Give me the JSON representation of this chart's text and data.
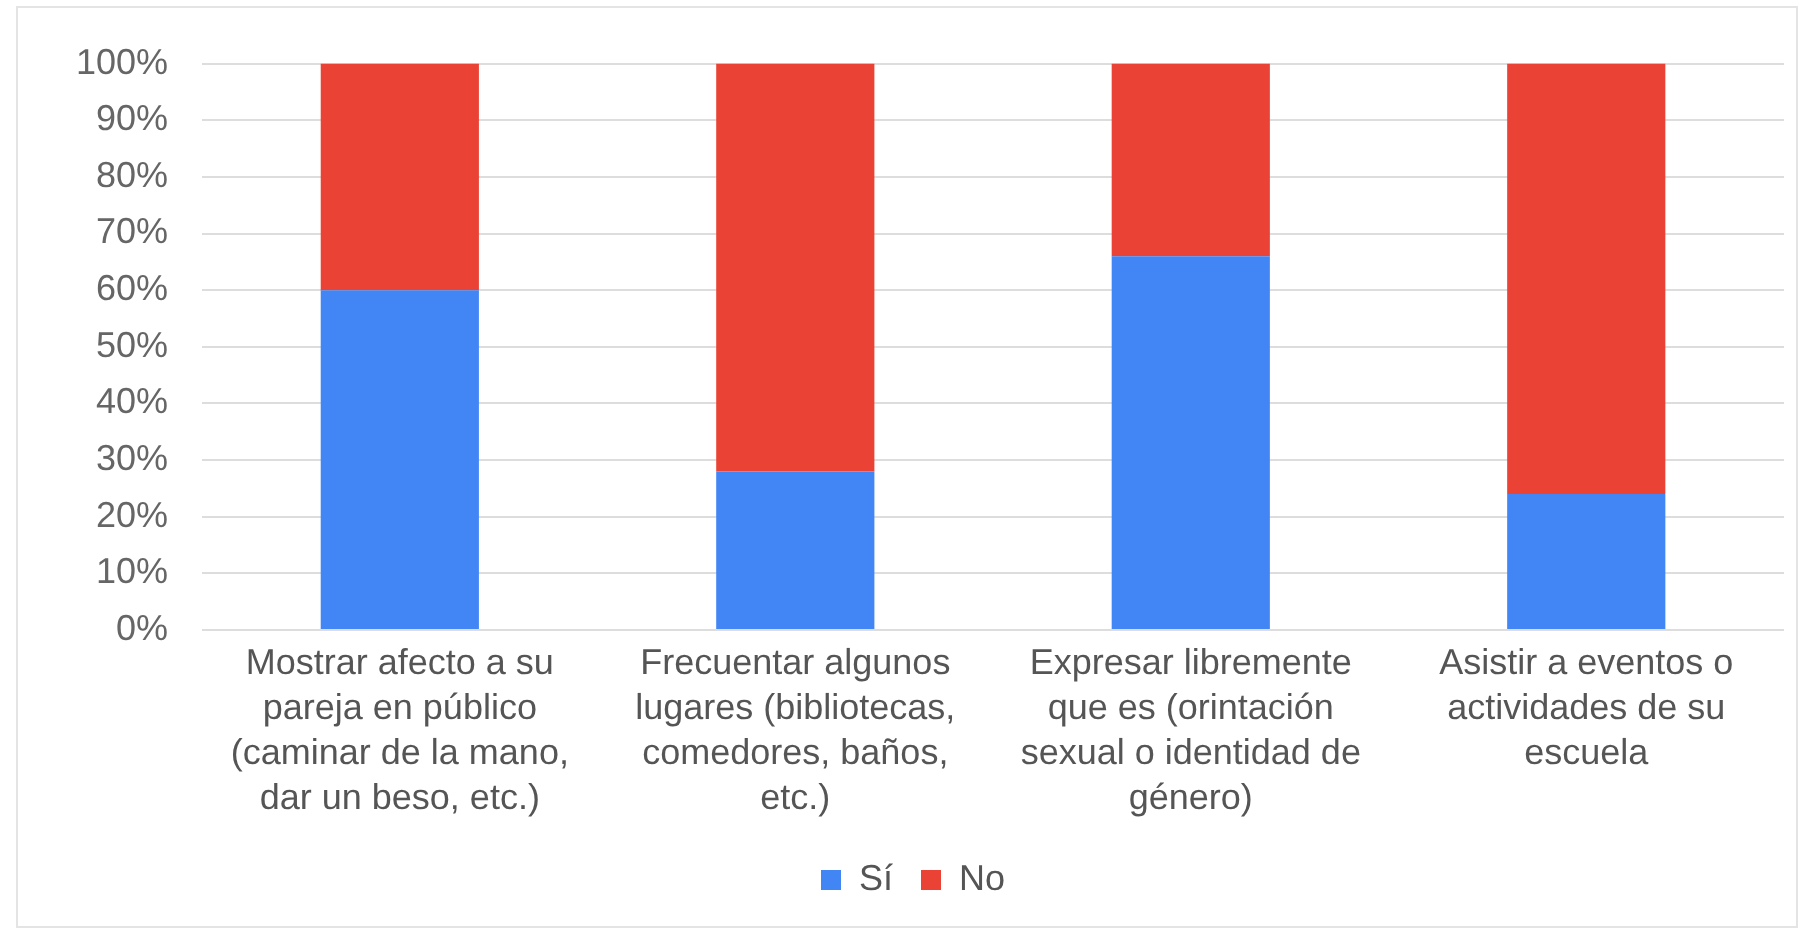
{
  "chart_data": {
    "type": "bar",
    "stacked": true,
    "categories": [
      "Mostrar afecto a su pareja en público (caminar de la mano, dar un beso, etc.)",
      "Frecuentar algunos lugares (bibliotecas, comedores, baños, etc.)",
      "Expresar libremente que es (orintación sexual o identidad de género)",
      "Asistir a eventos o actividades de su escuela"
    ],
    "series": [
      {
        "name": "Sí",
        "color": "#4285f4",
        "values": [
          60,
          28,
          66,
          24
        ]
      },
      {
        "name": "No",
        "color": "#ea4335",
        "values": [
          40,
          72,
          34,
          76
        ]
      }
    ],
    "ylim": [
      0,
      100
    ],
    "yticks": [
      {
        "value": 0,
        "label": "0%"
      },
      {
        "value": 10,
        "label": "10%"
      },
      {
        "value": 20,
        "label": "20%"
      },
      {
        "value": 30,
        "label": "30%"
      },
      {
        "value": 40,
        "label": "40%"
      },
      {
        "value": 50,
        "label": "50%"
      },
      {
        "value": 60,
        "label": "60%"
      },
      {
        "value": 70,
        "label": "70%"
      },
      {
        "value": 80,
        "label": "80%"
      },
      {
        "value": 90,
        "label": "90%"
      },
      {
        "value": 100,
        "label": "100%"
      }
    ],
    "grid": "y",
    "legend": "bottom"
  }
}
